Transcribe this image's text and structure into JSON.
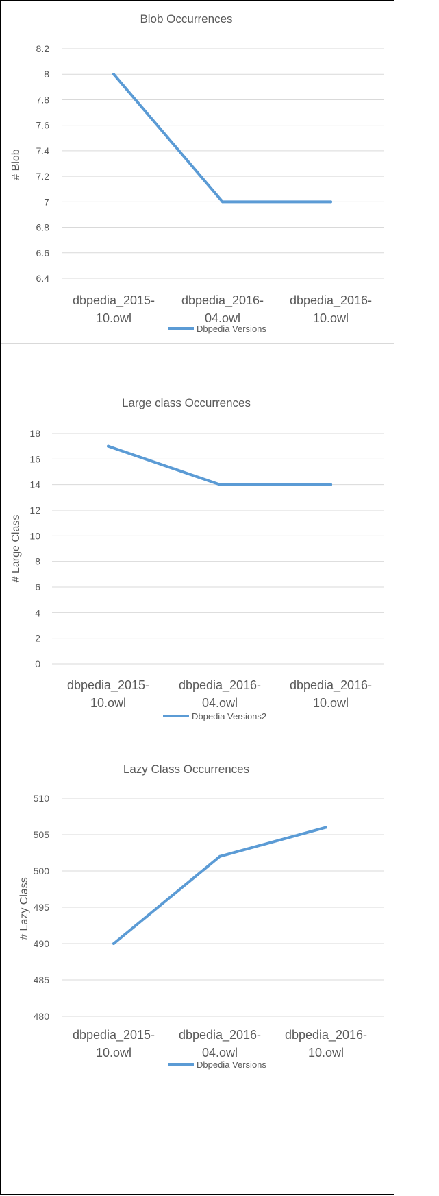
{
  "chart_data": [
    {
      "type": "line",
      "title": "Blob Occurrences",
      "xlabel": "",
      "ylabel": "# Blob",
      "categories": [
        [
          "dbpedia_2015-",
          "10.owl"
        ],
        [
          "dbpedia_2016-",
          "04.owl"
        ],
        [
          "dbpedia_2016-",
          "10.owl"
        ]
      ],
      "series": [
        {
          "name": "Dbpedia Versions",
          "values": [
            8,
            7,
            7
          ]
        }
      ],
      "yticks": [
        "8.2",
        "8",
        "7.8",
        "7.6",
        "7.4",
        "7.2",
        "7",
        "6.8",
        "6.6",
        "6.4"
      ],
      "ylim": [
        6.4,
        8.2
      ],
      "grid": true,
      "legend": "bottom"
    },
    {
      "type": "line",
      "title": "Large class Occurrences",
      "xlabel": "",
      "ylabel": "# Large Class",
      "categories": [
        [
          "dbpedia_2015-",
          "10.owl"
        ],
        [
          "dbpedia_2016-",
          "04.owl"
        ],
        [
          "dbpedia_2016-",
          "10.owl"
        ]
      ],
      "series": [
        {
          "name": "Dbpedia Versions2",
          "values": [
            17,
            14,
            14
          ]
        }
      ],
      "yticks": [
        "18",
        "16",
        "14",
        "12",
        "10",
        "8",
        "6",
        "4",
        "2",
        "0"
      ],
      "ylim": [
        0,
        18
      ],
      "grid": true,
      "legend": "bottom"
    },
    {
      "type": "line",
      "title": "Lazy Class Occurrences",
      "xlabel": "",
      "ylabel": "# Lazy Class",
      "categories": [
        [
          "dbpedia_2015-",
          "10.owl"
        ],
        [
          "dbpedia_2016-",
          "04.owl"
        ],
        [
          "dbpedia_2016-",
          "10.owl"
        ]
      ],
      "series": [
        {
          "name": "Dbpedia Versions",
          "values": [
            490,
            502,
            506
          ]
        }
      ],
      "yticks": [
        "510",
        "505",
        "500",
        "495",
        "490",
        "485",
        "480"
      ],
      "ylim": [
        480,
        510
      ],
      "grid": true,
      "legend": "bottom"
    }
  ],
  "colors": {
    "line": "#5b9bd5",
    "grid": "#d9d9d9",
    "text": "#595959"
  }
}
